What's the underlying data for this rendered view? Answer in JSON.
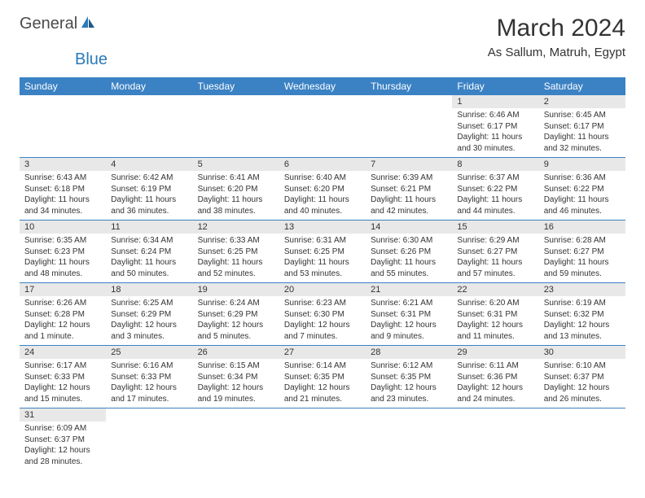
{
  "logo": {
    "general": "General",
    "blue": "Blue"
  },
  "title": "March 2024",
  "subtitle": "As Sallum, Matruh, Egypt",
  "colors": {
    "header_bg": "#3b82c4",
    "header_text": "#ffffff",
    "daynum_bg": "#e8e8e8",
    "border": "#3b82c4",
    "text": "#333333",
    "logo_blue": "#2a7ab8",
    "logo_gray": "#4a4a4a",
    "background": "#ffffff"
  },
  "typography": {
    "title_fontsize": 30,
    "subtitle_fontsize": 15,
    "header_fontsize": 12,
    "daynum_fontsize": 11,
    "data_fontsize": 10
  },
  "weekdays": [
    "Sunday",
    "Monday",
    "Tuesday",
    "Wednesday",
    "Thursday",
    "Friday",
    "Saturday"
  ],
  "weeks": [
    [
      null,
      null,
      null,
      null,
      null,
      {
        "n": "1",
        "sr": "Sunrise: 6:46 AM",
        "ss": "Sunset: 6:17 PM",
        "dl": "Daylight: 11 hours and 30 minutes."
      },
      {
        "n": "2",
        "sr": "Sunrise: 6:45 AM",
        "ss": "Sunset: 6:17 PM",
        "dl": "Daylight: 11 hours and 32 minutes."
      }
    ],
    [
      {
        "n": "3",
        "sr": "Sunrise: 6:43 AM",
        "ss": "Sunset: 6:18 PM",
        "dl": "Daylight: 11 hours and 34 minutes."
      },
      {
        "n": "4",
        "sr": "Sunrise: 6:42 AM",
        "ss": "Sunset: 6:19 PM",
        "dl": "Daylight: 11 hours and 36 minutes."
      },
      {
        "n": "5",
        "sr": "Sunrise: 6:41 AM",
        "ss": "Sunset: 6:20 PM",
        "dl": "Daylight: 11 hours and 38 minutes."
      },
      {
        "n": "6",
        "sr": "Sunrise: 6:40 AM",
        "ss": "Sunset: 6:20 PM",
        "dl": "Daylight: 11 hours and 40 minutes."
      },
      {
        "n": "7",
        "sr": "Sunrise: 6:39 AM",
        "ss": "Sunset: 6:21 PM",
        "dl": "Daylight: 11 hours and 42 minutes."
      },
      {
        "n": "8",
        "sr": "Sunrise: 6:37 AM",
        "ss": "Sunset: 6:22 PM",
        "dl": "Daylight: 11 hours and 44 minutes."
      },
      {
        "n": "9",
        "sr": "Sunrise: 6:36 AM",
        "ss": "Sunset: 6:22 PM",
        "dl": "Daylight: 11 hours and 46 minutes."
      }
    ],
    [
      {
        "n": "10",
        "sr": "Sunrise: 6:35 AM",
        "ss": "Sunset: 6:23 PM",
        "dl": "Daylight: 11 hours and 48 minutes."
      },
      {
        "n": "11",
        "sr": "Sunrise: 6:34 AM",
        "ss": "Sunset: 6:24 PM",
        "dl": "Daylight: 11 hours and 50 minutes."
      },
      {
        "n": "12",
        "sr": "Sunrise: 6:33 AM",
        "ss": "Sunset: 6:25 PM",
        "dl": "Daylight: 11 hours and 52 minutes."
      },
      {
        "n": "13",
        "sr": "Sunrise: 6:31 AM",
        "ss": "Sunset: 6:25 PM",
        "dl": "Daylight: 11 hours and 53 minutes."
      },
      {
        "n": "14",
        "sr": "Sunrise: 6:30 AM",
        "ss": "Sunset: 6:26 PM",
        "dl": "Daylight: 11 hours and 55 minutes."
      },
      {
        "n": "15",
        "sr": "Sunrise: 6:29 AM",
        "ss": "Sunset: 6:27 PM",
        "dl": "Daylight: 11 hours and 57 minutes."
      },
      {
        "n": "16",
        "sr": "Sunrise: 6:28 AM",
        "ss": "Sunset: 6:27 PM",
        "dl": "Daylight: 11 hours and 59 minutes."
      }
    ],
    [
      {
        "n": "17",
        "sr": "Sunrise: 6:26 AM",
        "ss": "Sunset: 6:28 PM",
        "dl": "Daylight: 12 hours and 1 minute."
      },
      {
        "n": "18",
        "sr": "Sunrise: 6:25 AM",
        "ss": "Sunset: 6:29 PM",
        "dl": "Daylight: 12 hours and 3 minutes."
      },
      {
        "n": "19",
        "sr": "Sunrise: 6:24 AM",
        "ss": "Sunset: 6:29 PM",
        "dl": "Daylight: 12 hours and 5 minutes."
      },
      {
        "n": "20",
        "sr": "Sunrise: 6:23 AM",
        "ss": "Sunset: 6:30 PM",
        "dl": "Daylight: 12 hours and 7 minutes."
      },
      {
        "n": "21",
        "sr": "Sunrise: 6:21 AM",
        "ss": "Sunset: 6:31 PM",
        "dl": "Daylight: 12 hours and 9 minutes."
      },
      {
        "n": "22",
        "sr": "Sunrise: 6:20 AM",
        "ss": "Sunset: 6:31 PM",
        "dl": "Daylight: 12 hours and 11 minutes."
      },
      {
        "n": "23",
        "sr": "Sunrise: 6:19 AM",
        "ss": "Sunset: 6:32 PM",
        "dl": "Daylight: 12 hours and 13 minutes."
      }
    ],
    [
      {
        "n": "24",
        "sr": "Sunrise: 6:17 AM",
        "ss": "Sunset: 6:33 PM",
        "dl": "Daylight: 12 hours and 15 minutes."
      },
      {
        "n": "25",
        "sr": "Sunrise: 6:16 AM",
        "ss": "Sunset: 6:33 PM",
        "dl": "Daylight: 12 hours and 17 minutes."
      },
      {
        "n": "26",
        "sr": "Sunrise: 6:15 AM",
        "ss": "Sunset: 6:34 PM",
        "dl": "Daylight: 12 hours and 19 minutes."
      },
      {
        "n": "27",
        "sr": "Sunrise: 6:14 AM",
        "ss": "Sunset: 6:35 PM",
        "dl": "Daylight: 12 hours and 21 minutes."
      },
      {
        "n": "28",
        "sr": "Sunrise: 6:12 AM",
        "ss": "Sunset: 6:35 PM",
        "dl": "Daylight: 12 hours and 23 minutes."
      },
      {
        "n": "29",
        "sr": "Sunrise: 6:11 AM",
        "ss": "Sunset: 6:36 PM",
        "dl": "Daylight: 12 hours and 24 minutes."
      },
      {
        "n": "30",
        "sr": "Sunrise: 6:10 AM",
        "ss": "Sunset: 6:37 PM",
        "dl": "Daylight: 12 hours and 26 minutes."
      }
    ],
    [
      {
        "n": "31",
        "sr": "Sunrise: 6:09 AM",
        "ss": "Sunset: 6:37 PM",
        "dl": "Daylight: 12 hours and 28 minutes."
      },
      null,
      null,
      null,
      null,
      null,
      null
    ]
  ]
}
